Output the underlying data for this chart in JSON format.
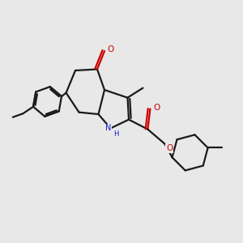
{
  "bg_color": "#e8e8e8",
  "bond_color": "#1a1a1a",
  "bond_width": 1.6,
  "N_color": "#1414cc",
  "O_color": "#cc0000",
  "figsize": [
    3.0,
    3.0
  ],
  "dpi": 100,
  "xlim": [
    0,
    10
  ],
  "ylim": [
    0,
    10
  ]
}
